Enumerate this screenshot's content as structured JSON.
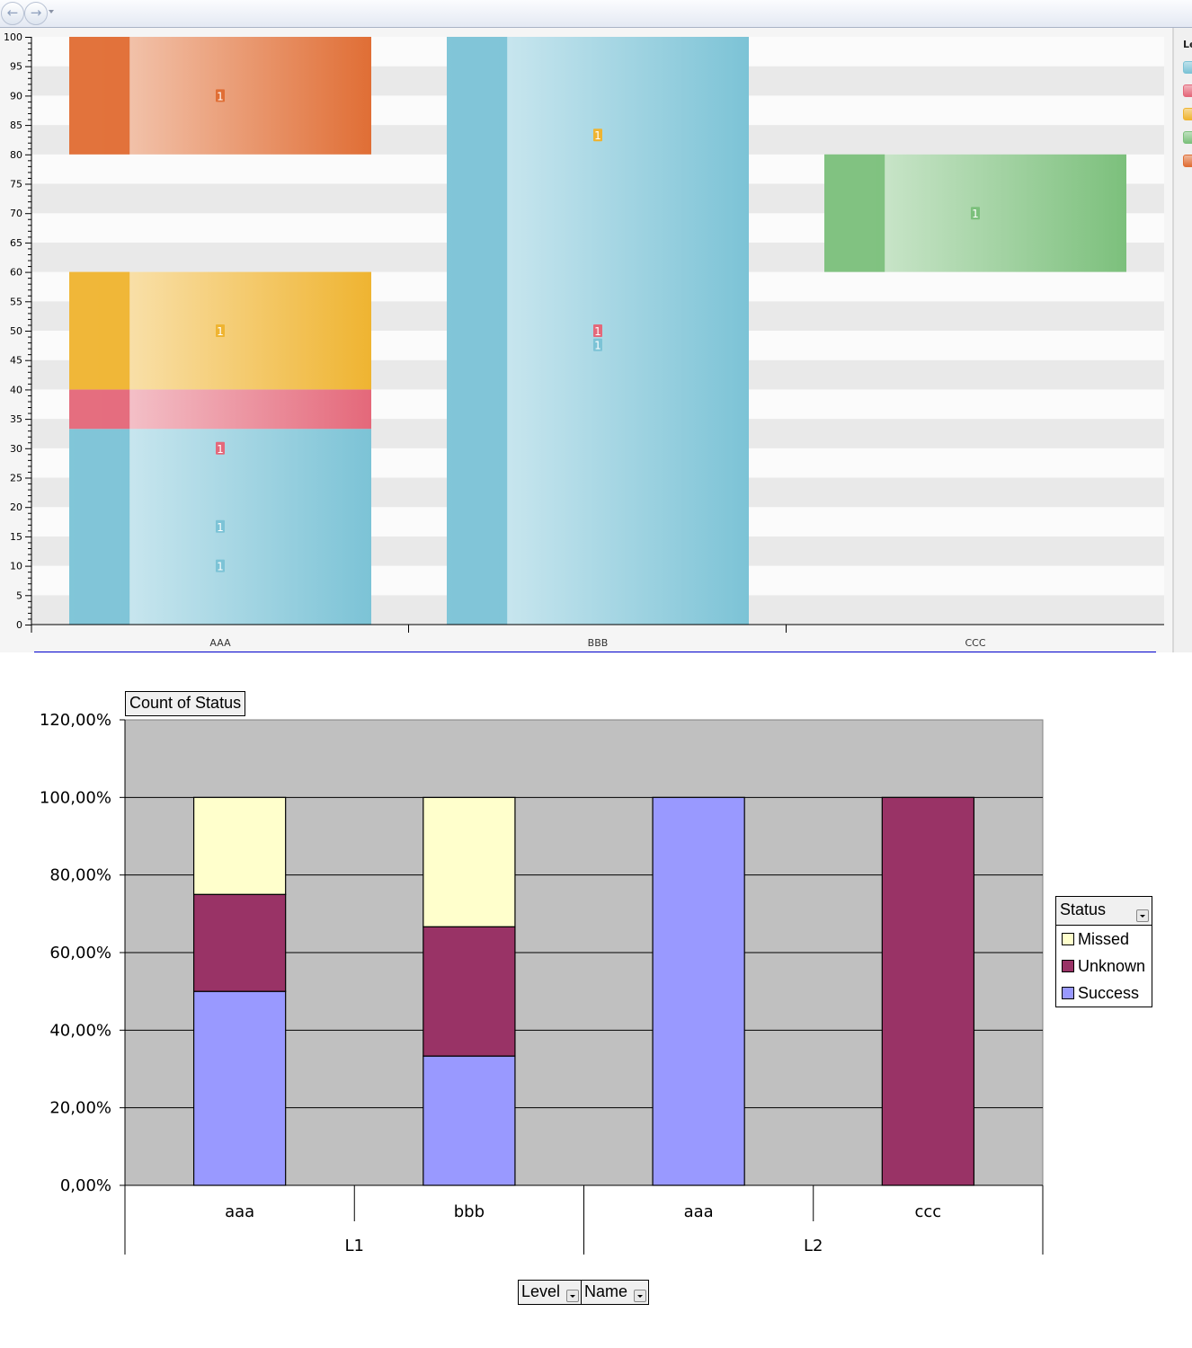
{
  "toolbar": {
    "back_icon": "back-arrow-icon",
    "forward_icon": "forward-arrow-icon",
    "back_glyph": "←",
    "forward_glyph": "→"
  },
  "chart_data": [
    {
      "type": "bar",
      "stacked": true,
      "title": "",
      "categories": [
        "AAA",
        "BBB",
        "CCC"
      ],
      "ylim": [
        0,
        100
      ],
      "yticks": [
        0,
        5,
        10,
        15,
        20,
        25,
        30,
        35,
        40,
        45,
        50,
        55,
        60,
        65,
        70,
        75,
        80,
        85,
        90,
        95,
        100
      ],
      "grid": "alternating horizontal bands",
      "legend": {
        "title": "Le",
        "placement": "right",
        "colors": [
          "#7cc3d6",
          "#e4687a",
          "#efb431",
          "#7cc07c",
          "#e06e35"
        ]
      },
      "segments": [
        {
          "category": "AAA",
          "from": 0,
          "to": 33.3,
          "color": "#7cc3d6"
        },
        {
          "category": "AAA",
          "from": 33.3,
          "to": 40,
          "color": "#e4687a"
        },
        {
          "category": "AAA",
          "from": 40,
          "to": 60,
          "color": "#efb431"
        },
        {
          "category": "AAA",
          "from": 80,
          "to": 100,
          "color": "#e06e35"
        },
        {
          "category": "BBB",
          "from": 0,
          "to": 100,
          "color": "#7cc3d6"
        },
        {
          "category": "CCC",
          "from": 60,
          "to": 80,
          "color": "#7cc07c"
        }
      ],
      "data_labels": [
        {
          "category": "AAA",
          "y": 90,
          "text": "1",
          "color": "#e06e35"
        },
        {
          "category": "AAA",
          "y": 50,
          "text": "1",
          "color": "#efb431"
        },
        {
          "category": "AAA",
          "y": 30,
          "text": "1",
          "color": "#e4687a"
        },
        {
          "category": "AAA",
          "y": 16.7,
          "text": "1",
          "color": "#7cc3d6"
        },
        {
          "category": "AAA",
          "y": 10,
          "text": "1",
          "color": "#7cc3d6"
        },
        {
          "category": "BBB",
          "y": 83.3,
          "text": "1",
          "color": "#efb431"
        },
        {
          "category": "BBB",
          "y": 50,
          "text": "1",
          "color": "#e4687a"
        },
        {
          "category": "BBB",
          "y": 47.6,
          "text": "1",
          "color": "#7cc3d6"
        },
        {
          "category": "CCC",
          "y": 70,
          "text": "1",
          "color": "#7cc07c"
        }
      ]
    },
    {
      "type": "bar",
      "stacked": true,
      "title": "Count of Status",
      "xlabel": "",
      "ylabel": "",
      "ylim": [
        0,
        120
      ],
      "yticks": [
        "0,00%",
        "20,00%",
        "40,00%",
        "60,00%",
        "80,00%",
        "100,00%",
        "120,00%"
      ],
      "ytick_values": [
        0,
        20,
        40,
        60,
        80,
        100,
        120
      ],
      "grid": true,
      "categories": [
        {
          "level": "L1",
          "name": "aaa"
        },
        {
          "level": "L1",
          "name": "bbb"
        },
        {
          "level": "L2",
          "name": "aaa"
        },
        {
          "level": "L2",
          "name": "ccc"
        }
      ],
      "groups": [
        "L1",
        "L2"
      ],
      "series": [
        {
          "name": "Success",
          "color": "#9999ff",
          "values": [
            50,
            33.33,
            100,
            0
          ]
        },
        {
          "name": "Unknown",
          "color": "#993366",
          "values": [
            25,
            33.33,
            0,
            100
          ]
        },
        {
          "name": "Missed",
          "color": "#ffffcc",
          "values": [
            25,
            33.33,
            0,
            0
          ]
        }
      ],
      "legend": {
        "title": "Status",
        "placement": "right",
        "items": [
          "Missed",
          "Unknown",
          "Success"
        ]
      },
      "plot_bg": "#c0c0c0"
    }
  ],
  "pivot": {
    "data_field": "Count of Status",
    "legend_field": "Status",
    "row_fields": [
      "Level",
      "Name"
    ]
  }
}
